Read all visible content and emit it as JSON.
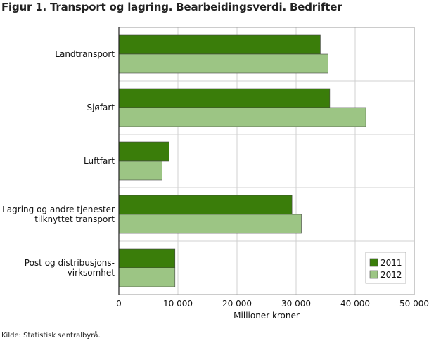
{
  "title": "Figur 1.  Transport og lagring. Bearbeidingsverdi. Bedrifter",
  "source": "Kilde: Statistisk sentralbyrå.",
  "chart_data": {
    "type": "bar",
    "orientation": "horizontal",
    "categories": [
      "Landtransport",
      "Sjøfart",
      "Luftfart",
      "Lagring og andre tjenester\ntilknyttet transport",
      "Post og distribusjons-\nvirksomhet"
    ],
    "series": [
      {
        "name": "2011",
        "color": "#3a7d0a",
        "values": [
          34100,
          35700,
          8500,
          29300,
          9500
        ]
      },
      {
        "name": "2012",
        "color": "#9cc584",
        "values": [
          35400,
          41800,
          7300,
          30900,
          9500
        ]
      }
    ],
    "xlabel": "Millioner kroner",
    "xlim": [
      0,
      50000
    ],
    "xticks": [
      0,
      10000,
      20000,
      30000,
      40000,
      50000
    ],
    "xtick_labels": [
      "0",
      "10 000",
      "20 000",
      "30 000",
      "40 000",
      "50 000"
    ],
    "grid": true,
    "legend_position": "bottom-right"
  }
}
